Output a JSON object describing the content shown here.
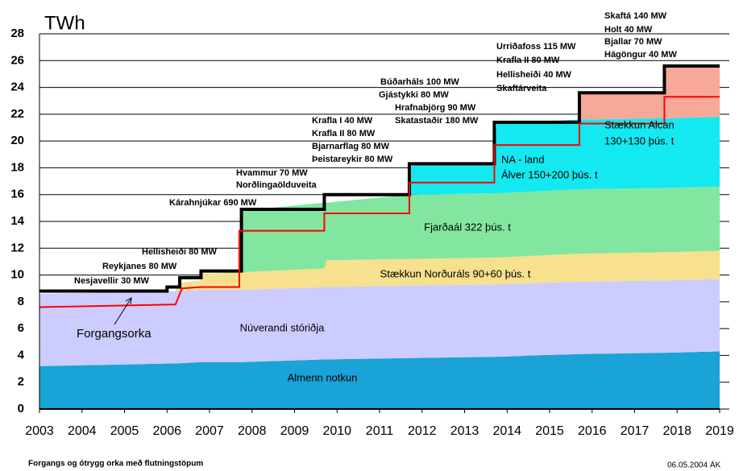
{
  "chart_data": {
    "type": "stacked-area",
    "title": "TWh",
    "footnote": "Forgangs og ótrygg orka með flutningstöpum",
    "date_note": "06.05.2004 ÁK",
    "x": [
      2003,
      2006.2,
      2006.25,
      2006.8,
      2006.85,
      2007.7,
      2007.75,
      2009.7,
      2009.75,
      2011.7,
      2011.75,
      2013.7,
      2013.75,
      2015.7,
      2015.75,
      2017.7,
      2017.75,
      2019
    ],
    "series": [
      {
        "name": "Almenn notkun",
        "color": "#1aa3d6",
        "values": [
          3.2,
          3.4,
          3.4,
          3.5,
          3.5,
          3.5,
          3.5,
          3.7,
          3.7,
          3.8,
          3.8,
          3.9,
          3.9,
          4.1,
          4.1,
          4.2,
          4.2,
          4.3
        ]
      },
      {
        "name": "Núverandi stóriðja",
        "color": "#ccccff",
        "values": [
          5.4,
          5.4,
          5.4,
          5.4,
          5.4,
          5.4,
          5.4,
          5.4,
          5.4,
          5.4,
          5.4,
          5.4,
          5.4,
          5.4,
          5.4,
          5.4,
          5.4,
          5.4
        ]
      },
      {
        "name": "Stækkun Norðuráls 90+60 þús. t",
        "color": "#f7e08e",
        "values": [
          0,
          0,
          0.6,
          0.7,
          1.2,
          1.3,
          1.3,
          1.4,
          2.0,
          2.0,
          2.0,
          2.0,
          2.0,
          2.1,
          2.1,
          2.1,
          2.1,
          2.1
        ]
      },
      {
        "name": "Fjarðaál 322 þús. t",
        "color": "#82e6a0",
        "values": [
          0,
          0,
          0,
          0,
          0,
          0,
          4.6,
          4.9,
          4.3,
          4.8,
          4.8,
          4.8,
          4.8,
          4.8,
          4.8,
          4.8,
          4.8,
          4.8
        ]
      },
      {
        "name": "NA - land",
        "color": "#14e8f0",
        "values": [
          0,
          0,
          0,
          0,
          0,
          0,
          0,
          0,
          0,
          0,
          2.2,
          2.2,
          5.2,
          5.2,
          5.2,
          5.2,
          5.2,
          5.2
        ]
      },
      {
        "name": "Stækkun Alcan",
        "color": "#f8a898",
        "values": [
          0,
          0,
          0,
          0,
          0,
          0,
          0,
          0,
          0,
          0,
          0,
          0,
          0,
          0,
          2.0,
          2.0,
          3.9,
          3.8
        ]
      }
    ],
    "lines": [
      {
        "color": "#000000",
        "x": [
          2003,
          2006.0,
          2006.0,
          2006.3,
          2006.3,
          2006.8,
          2006.8,
          2007.75,
          2007.75,
          2009.7,
          2009.7,
          2011.7,
          2011.7,
          2013.7,
          2013.7,
          2015.7,
          2015.7,
          2017.7,
          2017.7,
          2019
        ],
        "values": [
          8.8,
          8.8,
          9.1,
          9.1,
          9.8,
          9.8,
          10.3,
          10.3,
          14.9,
          14.9,
          16.0,
          16.0,
          18.3,
          18.3,
          21.4,
          21.4,
          23.6,
          23.6,
          25.6,
          25.6
        ]
      },
      {
        "name": "Forgangsorka",
        "color": "#ff0000",
        "x": [
          2003,
          2006.2,
          2006.35,
          2006.8,
          2007.7,
          2007.7,
          2009.7,
          2009.7,
          2011.7,
          2011.7,
          2013.7,
          2013.7,
          2015.7,
          2015.7,
          2017.7,
          2017.7,
          2019
        ],
        "values": [
          7.6,
          7.8,
          9.0,
          9.1,
          9.1,
          13.3,
          13.3,
          14.6,
          14.6,
          16.9,
          16.9,
          19.7,
          19.7,
          21.3,
          21.3,
          23.3,
          23.3
        ]
      }
    ],
    "annotations": [
      "Nesjavellir 30 MW",
      "Reykjanes 80 MW",
      "Hellisheiði 80 MW",
      "Kárahnjúkar 690 MW",
      "Hvammur 70 MW",
      "Norðlingaölduveita",
      "Krafla I 40 MW",
      "Krafla II 80 MW",
      "Bjarnarflag 80 MW",
      "Þeistareykir 80 MW",
      "Búðarháls 100 MW",
      "Gjástykki 80 MW",
      "Hrafnabjörg 90 MW",
      "Skatastaðir 180 MW",
      "Urriðafoss 115 MW",
      "Krafla II 80 MW",
      "Hellisheiði 40 MW",
      "Skaftárveita",
      "Skaftá 140 MW",
      "Holt 40 MW",
      "Bjallar 70 MW",
      "Hágöngur 40 MW",
      "Álver 150+200 þús. t",
      "130+130 þús. t"
    ],
    "xlim": [
      2003,
      2019
    ],
    "ylim": [
      0,
      28
    ],
    "xticks": [
      2003,
      2004,
      2005,
      2006,
      2007,
      2008,
      2009,
      2010,
      2011,
      2012,
      2013,
      2014,
      2015,
      2016,
      2017,
      2018,
      2019
    ],
    "yticks": [
      0,
      2,
      4,
      6,
      8,
      10,
      12,
      14,
      16,
      18,
      20,
      22,
      24,
      26,
      28
    ],
    "grid": true
  }
}
